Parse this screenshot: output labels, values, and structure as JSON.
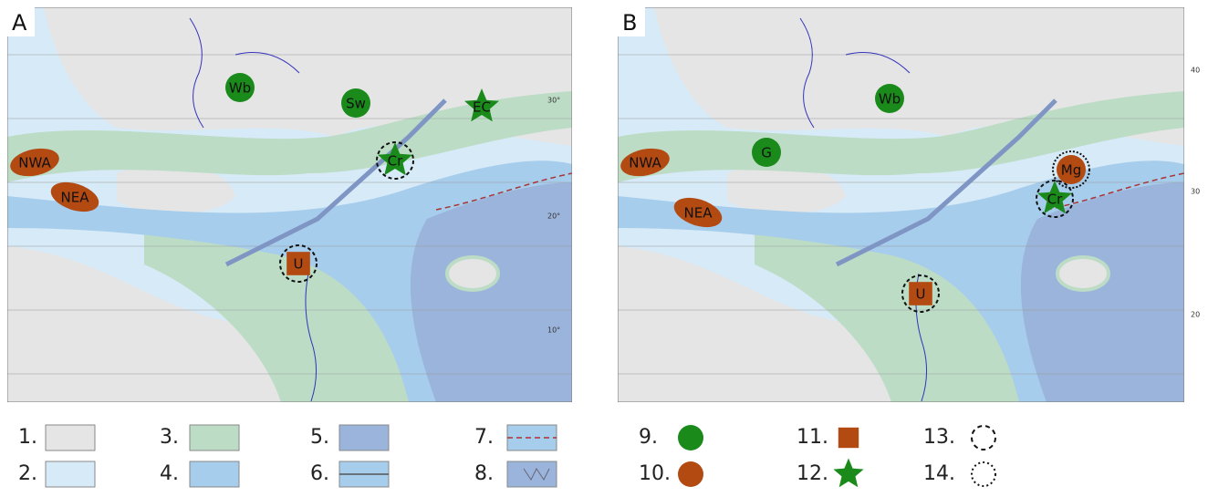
{
  "panels": [
    {
      "label": "A",
      "latitudes": [
        "30°",
        "20°",
        "10°"
      ],
      "markers": [
        {
          "label": "NWA"
        },
        {
          "label": "NEA"
        },
        {
          "label": "Wb"
        },
        {
          "label": "Sw"
        },
        {
          "label": "EC"
        },
        {
          "label": "Cr"
        },
        {
          "label": "U"
        }
      ]
    },
    {
      "label": "B",
      "latitudes": [
        "40",
        "30",
        "20"
      ],
      "markers": [
        {
          "label": "NWA"
        },
        {
          "label": "NEA"
        },
        {
          "label": "G"
        },
        {
          "label": "Wb"
        },
        {
          "label": "Mg"
        },
        {
          "label": "Cr"
        },
        {
          "label": "U"
        }
      ]
    }
  ],
  "legend": [
    "1.",
    "2.",
    "3.",
    "4.",
    "5.",
    "6.",
    "7.",
    "8.",
    "9.",
    "10.",
    "11.",
    "12.",
    "13.",
    "14."
  ]
}
